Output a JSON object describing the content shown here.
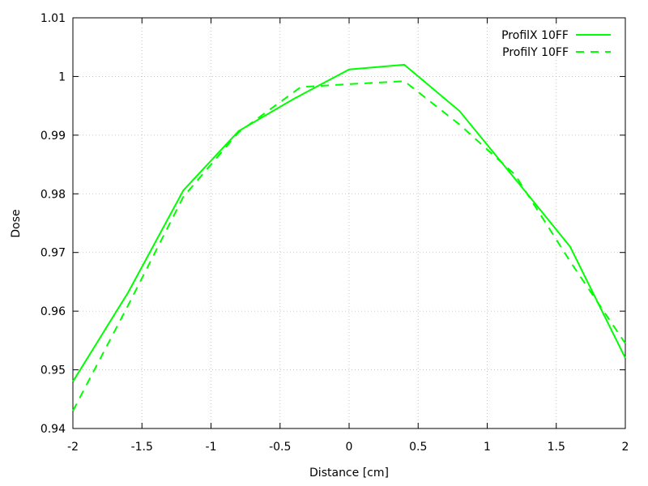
{
  "chart_data": {
    "type": "line",
    "title": "",
    "xlabel": "Distance [cm]",
    "ylabel": "Dose",
    "xlim": [
      -2,
      2
    ],
    "ylim": [
      0.94,
      1.01
    ],
    "xticks": [
      -2,
      -1.5,
      -1,
      -0.5,
      0,
      0.5,
      1,
      1.5,
      2
    ],
    "xtick_labels": [
      "-2",
      "-1.5",
      "-1",
      "-0.5",
      "0",
      "0.5",
      "1",
      "1.5",
      "2"
    ],
    "yticks": [
      0.94,
      0.95,
      0.96,
      0.97,
      0.98,
      0.99,
      1.0,
      1.01
    ],
    "ytick_labels": [
      "0.94",
      "0.95",
      "0.96",
      "0.97",
      "0.98",
      "0.99",
      "1",
      "1.01"
    ],
    "grid": true,
    "legend_position": "top-right",
    "series": [
      {
        "name": "ProfilX 10FF",
        "style": "solid",
        "color": "#00ff00",
        "x": [
          -2,
          -1.6,
          -1.2,
          -0.8,
          -0.4,
          0,
          0.4,
          0.8,
          1.2,
          1.6,
          2
        ],
        "y": [
          0.948,
          0.9632,
          0.9806,
          0.9907,
          0.9962,
          1.0012,
          1.002,
          0.9941,
          0.9826,
          0.971,
          0.952
        ]
      },
      {
        "name": "ProfilY 10FF",
        "style": "dashed",
        "color": "#00ff00",
        "x": [
          -2,
          -1.6,
          -1.2,
          -0.8,
          -0.35,
          0,
          0.4,
          0.8,
          1.2,
          1.6,
          2
        ],
        "y": [
          0.943,
          0.961,
          0.9795,
          0.9905,
          0.9982,
          0.9987,
          0.9992,
          0.9918,
          0.9833,
          0.9685,
          0.9545
        ]
      }
    ]
  }
}
